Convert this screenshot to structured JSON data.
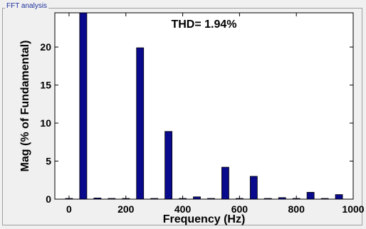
{
  "panel": {
    "title": "FFT analysis"
  },
  "chart_data": {
    "type": "bar",
    "title": "THD= 1.94%",
    "xlabel": "Frequency (Hz)",
    "ylabel": "Mag (% of Fundamental)",
    "xlim": [
      -50,
      1000
    ],
    "ylim": [
      0,
      24.5
    ],
    "xticks": [
      0,
      200,
      400,
      600,
      800,
      1000
    ],
    "yticks": [
      0,
      5,
      10,
      15,
      20
    ],
    "grid": false,
    "bar_color": "#0a0a8c",
    "bar_edge_color": "#000000",
    "background_color": "#ffffff",
    "series": [
      {
        "x": [
          0,
          50,
          100,
          150,
          200,
          250,
          300,
          350,
          400,
          450,
          500,
          550,
          600,
          650,
          700,
          750,
          800,
          850,
          900,
          950
        ],
        "values": [
          0.05,
          24.5,
          0.15,
          0.05,
          0.05,
          19.9,
          0.05,
          8.9,
          0.05,
          0.3,
          0.05,
          4.2,
          0.05,
          3.0,
          0.05,
          0.2,
          0.05,
          0.9,
          0.05,
          0.6
        ]
      }
    ]
  }
}
